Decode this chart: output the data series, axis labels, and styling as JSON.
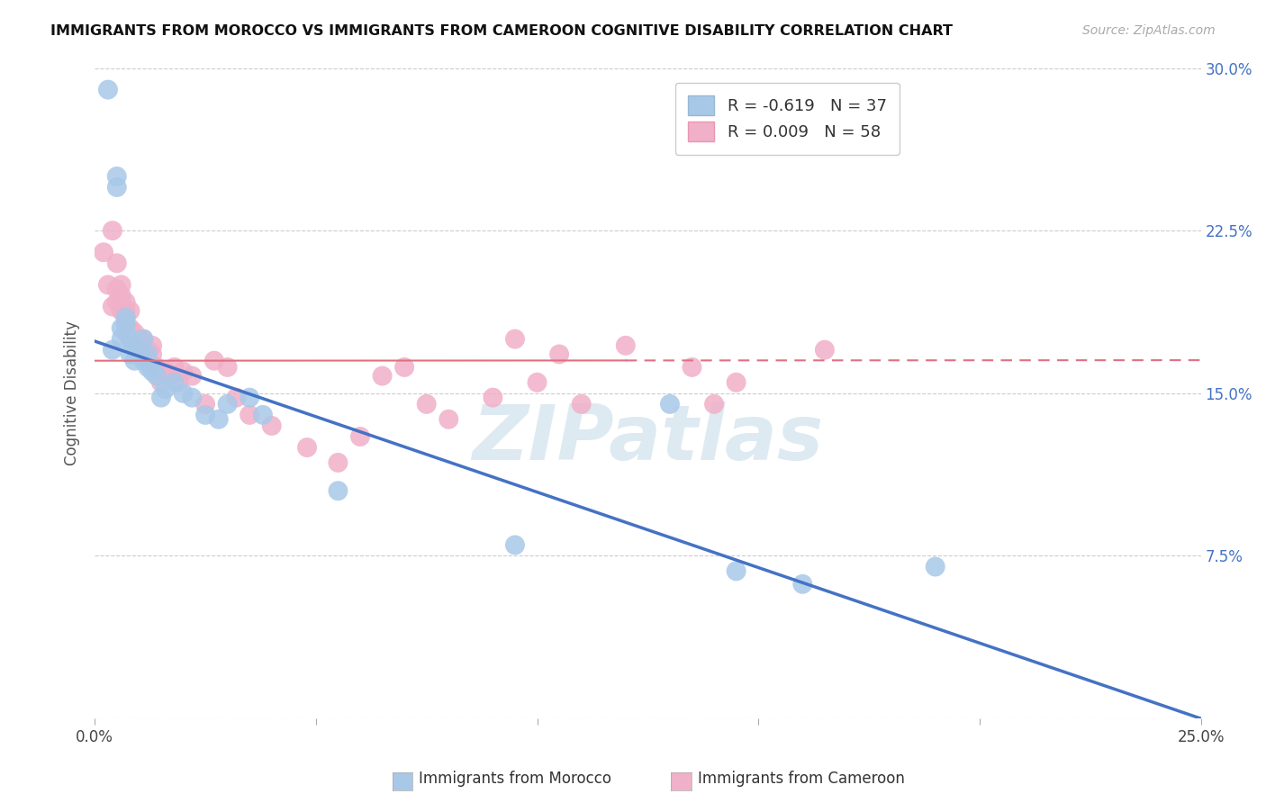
{
  "title": "IMMIGRANTS FROM MOROCCO VS IMMIGRANTS FROM CAMEROON COGNITIVE DISABILITY CORRELATION CHART",
  "source": "Source: ZipAtlas.com",
  "ylabel": "Cognitive Disability",
  "xlim": [
    0,
    0.25
  ],
  "ylim": [
    0,
    0.3
  ],
  "morocco_R": "-0.619",
  "morocco_N": "37",
  "cameroon_R": "0.009",
  "cameroon_N": "58",
  "morocco_color": "#a8c8e8",
  "cameroon_color": "#f0b0c8",
  "morocco_line_color": "#4472c4",
  "cameroon_line_color": "#e07080",
  "watermark_color": "#c8dce8",
  "background_color": "#ffffff",
  "grid_color": "#cccccc",
  "morocco_x": [
    0.003,
    0.004,
    0.005,
    0.005,
    0.006,
    0.006,
    0.007,
    0.007,
    0.007,
    0.008,
    0.008,
    0.009,
    0.009,
    0.01,
    0.01,
    0.011,
    0.011,
    0.012,
    0.012,
    0.013,
    0.014,
    0.015,
    0.016,
    0.018,
    0.02,
    0.022,
    0.025,
    0.028,
    0.03,
    0.035,
    0.038,
    0.055,
    0.095,
    0.13,
    0.145,
    0.16,
    0.19
  ],
  "morocco_y": [
    0.29,
    0.17,
    0.25,
    0.245,
    0.18,
    0.175,
    0.185,
    0.182,
    0.178,
    0.175,
    0.168,
    0.172,
    0.165,
    0.17,
    0.168,
    0.175,
    0.165,
    0.168,
    0.162,
    0.16,
    0.158,
    0.148,
    0.152,
    0.155,
    0.15,
    0.148,
    0.14,
    0.138,
    0.145,
    0.148,
    0.14,
    0.105,
    0.08,
    0.145,
    0.068,
    0.062,
    0.07
  ],
  "cameroon_x": [
    0.002,
    0.003,
    0.004,
    0.004,
    0.005,
    0.005,
    0.005,
    0.006,
    0.006,
    0.006,
    0.007,
    0.007,
    0.007,
    0.007,
    0.008,
    0.008,
    0.008,
    0.009,
    0.009,
    0.01,
    0.01,
    0.011,
    0.011,
    0.012,
    0.012,
    0.013,
    0.013,
    0.014,
    0.015,
    0.016,
    0.017,
    0.018,
    0.019,
    0.02,
    0.022,
    0.025,
    0.027,
    0.03,
    0.032,
    0.035,
    0.04,
    0.048,
    0.055,
    0.06,
    0.065,
    0.07,
    0.075,
    0.08,
    0.09,
    0.095,
    0.1,
    0.105,
    0.11,
    0.12,
    0.135,
    0.14,
    0.145,
    0.165
  ],
  "cameroon_y": [
    0.215,
    0.2,
    0.225,
    0.19,
    0.21,
    0.198,
    0.192,
    0.2,
    0.195,
    0.188,
    0.192,
    0.188,
    0.185,
    0.182,
    0.188,
    0.18,
    0.175,
    0.178,
    0.172,
    0.175,
    0.17,
    0.175,
    0.168,
    0.17,
    0.165,
    0.172,
    0.168,
    0.162,
    0.155,
    0.16,
    0.158,
    0.162,
    0.155,
    0.16,
    0.158,
    0.145,
    0.165,
    0.162,
    0.148,
    0.14,
    0.135,
    0.125,
    0.118,
    0.13,
    0.158,
    0.162,
    0.145,
    0.138,
    0.148,
    0.175,
    0.155,
    0.168,
    0.145,
    0.172,
    0.162,
    0.145,
    0.155,
    0.17
  ],
  "mor_trend_x0": 0.0,
  "mor_trend_y0": 0.174,
  "mor_trend_x1": 0.25,
  "mor_trend_y1": 0.0,
  "cam_trend_y": 0.165
}
